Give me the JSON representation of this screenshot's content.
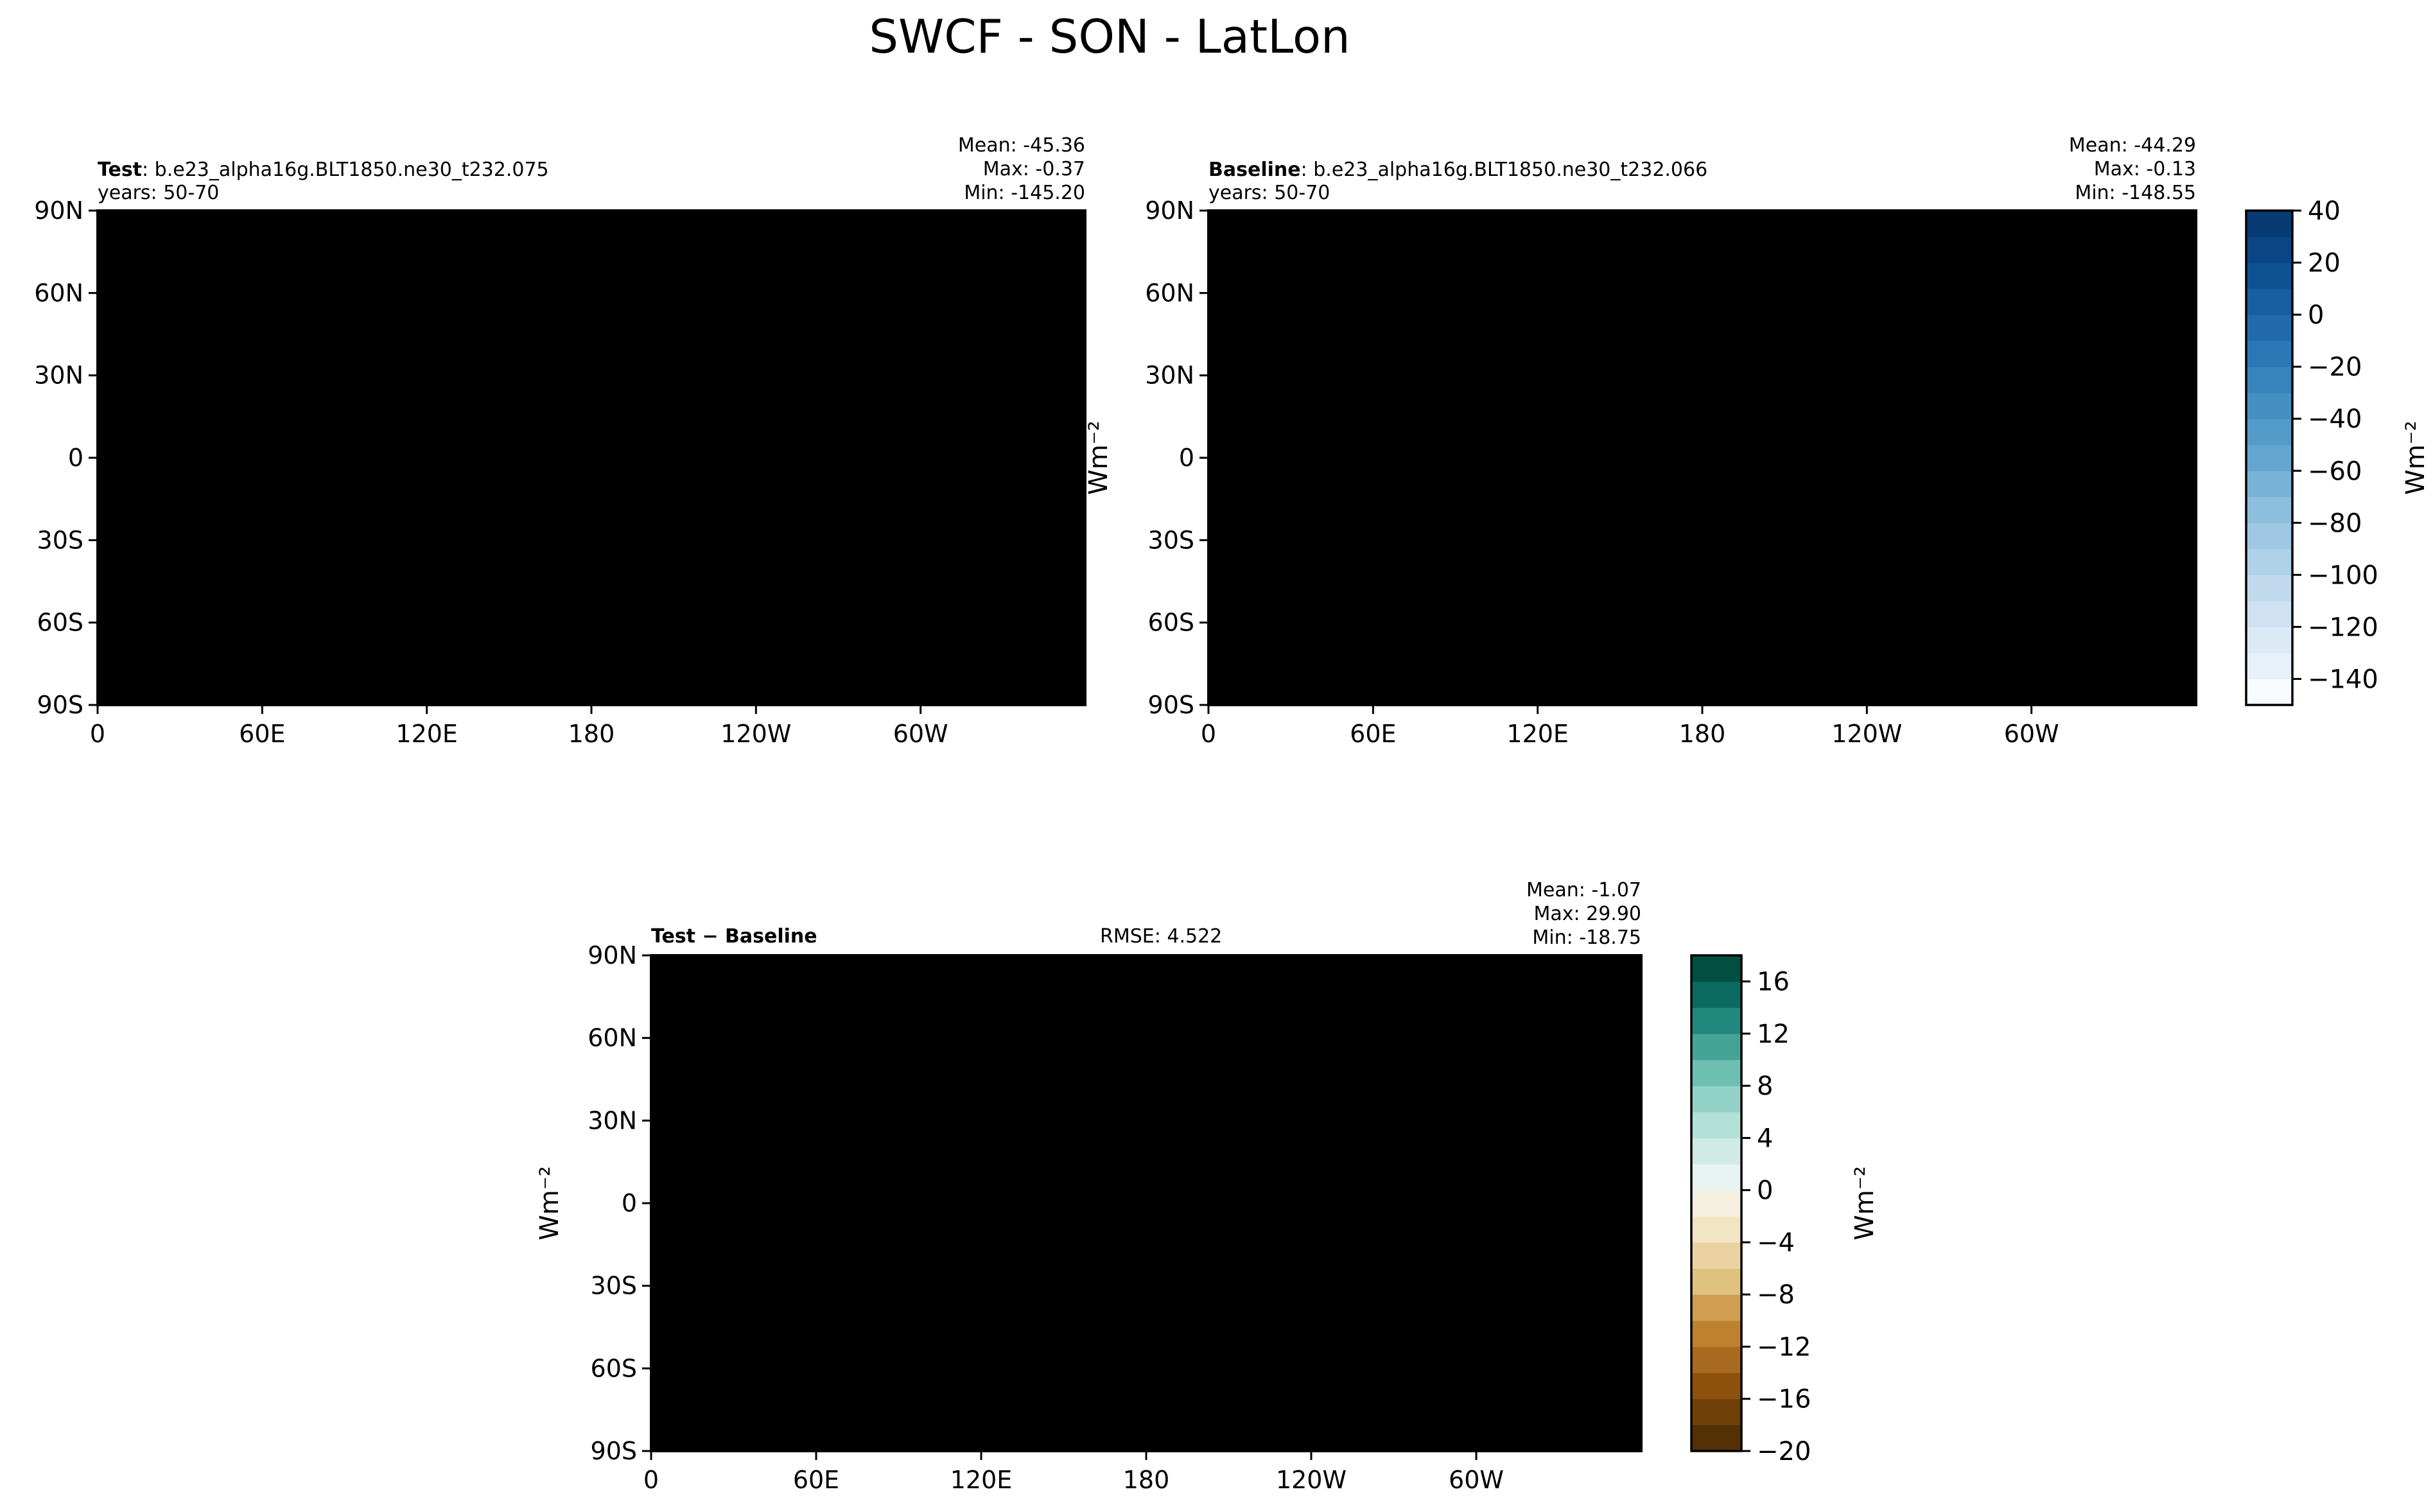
{
  "figure_title": "SWCF - SON - LatLon",
  "colors": {
    "ocean_base": "#2e6fb6",
    "land_base": "#2a6bb0",
    "coast": "#000000",
    "diff_neutral": "#f4f1e4"
  },
  "chart_data": [
    {
      "type": "heatmap",
      "panel": "test",
      "label_bold": "Test",
      "label_rest": ": b.e23_alpha16g.BLT1850.ne30_t232.075",
      "years": "years: 50-70",
      "mean": "Mean: -45.36",
      "max": "Max: -0.37",
      "min": "Min: -145.20",
      "rmse": "",
      "xlabels": [
        "0",
        "60E",
        "120E",
        "180",
        "120W",
        "60W"
      ],
      "xvalues": [
        0,
        60,
        120,
        180,
        240,
        300
      ],
      "ylabels": [
        "90N",
        "60N",
        "30N",
        "0",
        "30S",
        "60S",
        "90S"
      ],
      "yvalues": [
        90,
        60,
        30,
        0,
        -30,
        -60,
        -90
      ],
      "xlim": [
        0,
        360
      ],
      "ylim": [
        -90,
        90
      ],
      "ylabel_unit": ""
    },
    {
      "type": "heatmap",
      "panel": "baseline",
      "label_bold": "Baseline",
      "label_rest": ": b.e23_alpha16g.BLT1850.ne30_t232.066",
      "years": "years: 50-70",
      "mean": "Mean: -44.29",
      "max": "Max: -0.13",
      "min": "Min: -148.55",
      "rmse": "",
      "xlabels": [
        "0",
        "60E",
        "120E",
        "180",
        "120W",
        "60W"
      ],
      "xvalues": [
        0,
        60,
        120,
        180,
        240,
        300
      ],
      "ylabels": [
        "90N",
        "60N",
        "30N",
        "0",
        "30S",
        "60S",
        "90S"
      ],
      "yvalues": [
        90,
        60,
        30,
        0,
        -30,
        -60,
        -90
      ],
      "xlim": [
        0,
        360
      ],
      "ylim": [
        -90,
        90
      ],
      "ylabel_unit": "Wm⁻²"
    },
    {
      "type": "heatmap",
      "panel": "difference",
      "label_bold": "Test − Baseline",
      "label_rest": "",
      "years": "",
      "mean": "Mean: -1.07",
      "max": "Max: 29.90",
      "min": "Min: -18.75",
      "rmse": "RMSE: 4.522",
      "xlabels": [
        "0",
        "60E",
        "120E",
        "180",
        "120W",
        "60W"
      ],
      "xvalues": [
        0,
        60,
        120,
        180,
        240,
        300
      ],
      "ylabels": [
        "90N",
        "60N",
        "30N",
        "0",
        "30S",
        "60S",
        "90S"
      ],
      "yvalues": [
        90,
        60,
        30,
        0,
        -30,
        -60,
        -90
      ],
      "xlim": [
        0,
        360
      ],
      "ylim": [
        -90,
        90
      ],
      "ylabel_unit": "Wm⁻²"
    }
  ],
  "colorbars": [
    {
      "name": "main",
      "unit": "Wm⁻²",
      "levels": [
        -150,
        -140,
        -130,
        -120,
        -110,
        -100,
        -90,
        -80,
        -70,
        -60,
        -50,
        -40,
        -30,
        -20,
        -10,
        0,
        10,
        20,
        30,
        40
      ],
      "tick_values": [
        40,
        20,
        0,
        -20,
        -40,
        -60,
        -80,
        -100,
        -120,
        -140
      ],
      "tick_labels": [
        "40",
        "20",
        "0",
        "−20",
        "−40",
        "−60",
        "−80",
        "−100",
        "−120",
        "−140"
      ],
      "colors": [
        "#f7fbff",
        "#e8f1fa",
        "#dceaf6",
        "#cfe1f2",
        "#c1d9ed",
        "#b0d2e8",
        "#9fc8e2",
        "#8dbedc",
        "#79b2d6",
        "#64a6cf",
        "#539bc8",
        "#4490c2",
        "#3784bd",
        "#2b78b6",
        "#216bac",
        "#175fa1",
        "#0f5294",
        "#0b4585",
        "#083a74"
      ]
    },
    {
      "name": "diff",
      "unit": "Wm⁻²",
      "levels": [
        -20,
        -18,
        -16,
        -14,
        -12,
        -10,
        -8,
        -6,
        -4,
        -2,
        0,
        2,
        4,
        6,
        8,
        10,
        12,
        14,
        16,
        18
      ],
      "tick_values": [
        16,
        12,
        8,
        4,
        0,
        -4,
        -8,
        -12,
        -16,
        -20
      ],
      "tick_labels": [
        "16",
        "12",
        "8",
        "4",
        "0",
        "−4",
        "−8",
        "−12",
        "−16",
        "−20"
      ],
      "colors": [
        "#543005",
        "#6f4008",
        "#8c510a",
        "#a76a1f",
        "#bf812d",
        "#d19d51",
        "#dfc27d",
        "#ead3a0",
        "#f2e5c4",
        "#f6f0e0",
        "#e9f4f2",
        "#d0ebe6",
        "#b2e1d8",
        "#93d2c6",
        "#6dbfb0",
        "#44a597",
        "#21887d",
        "#0b6b61",
        "#01503f"
      ]
    }
  ]
}
